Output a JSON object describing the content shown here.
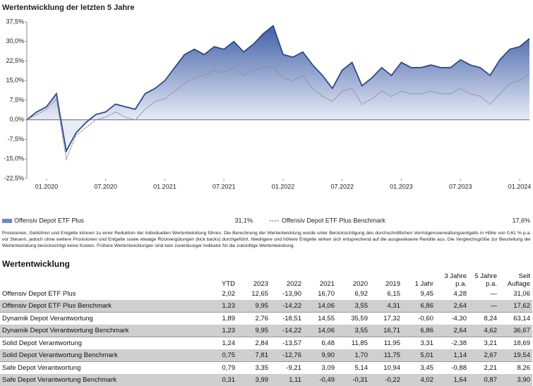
{
  "chart_data": {
    "type": "line",
    "title": "Wertentwicklung der letzten 5 Jahre",
    "x": [
      "2019-11",
      "2019-12",
      "2020-01",
      "2020-02",
      "2020-03",
      "2020-04",
      "2020-05",
      "2020-06",
      "2020-07",
      "2020-08",
      "2020-09",
      "2020-10",
      "2020-11",
      "2020-12",
      "2021-01",
      "2021-02",
      "2021-03",
      "2021-04",
      "2021-05",
      "2021-06",
      "2021-07",
      "2021-08",
      "2021-09",
      "2021-10",
      "2021-11",
      "2021-12",
      "2022-01",
      "2022-02",
      "2022-03",
      "2022-04",
      "2022-05",
      "2022-06",
      "2022-07",
      "2022-08",
      "2022-09",
      "2022-10",
      "2022-11",
      "2022-12",
      "2023-01",
      "2023-02",
      "2023-03",
      "2023-04",
      "2023-05",
      "2023-06",
      "2023-07",
      "2023-08",
      "2023-09",
      "2023-10",
      "2023-11",
      "2023-12",
      "2024-01",
      "2024-02"
    ],
    "series": [
      {
        "name": "Offensiv Depot ETF Plus",
        "color": "#2a4a8f",
        "legend_label": "31,1%",
        "values": [
          0,
          3,
          5,
          10,
          -12,
          -5,
          -1,
          2,
          3,
          6,
          5,
          4,
          10,
          12,
          15,
          20,
          25,
          27,
          25,
          28,
          27,
          30,
          26,
          29,
          33,
          36,
          25,
          24,
          26,
          21,
          17,
          12,
          19,
          22,
          13,
          16,
          20,
          17,
          22,
          20,
          20,
          21,
          20,
          20,
          23,
          21,
          20,
          17,
          23,
          27,
          28,
          31.1
        ]
      },
      {
        "name": "Offensiv Depot ETF Plus Benchmark",
        "color": "#8a8a8a",
        "legend_label": "17,6%",
        "values": [
          0,
          2,
          4,
          8,
          -15,
          -6,
          -3,
          0,
          1,
          3,
          1,
          0,
          4,
          7,
          8,
          11,
          14,
          16,
          17,
          19,
          18,
          20,
          17,
          19,
          20,
          20,
          16,
          15,
          17,
          12,
          9,
          7,
          11,
          12,
          6,
          8,
          11,
          9,
          11,
          10,
          10,
          11,
          10,
          10,
          12,
          10,
          9,
          6,
          10,
          14,
          15,
          17.6
        ]
      }
    ],
    "xlim": [
      "2019-11",
      "2024-02"
    ],
    "xticks": [
      {
        "value": "2020-01",
        "label": "01.2020"
      },
      {
        "value": "2020-07",
        "label": "07.2020"
      },
      {
        "value": "2021-01",
        "label": "01.2021"
      },
      {
        "value": "2021-07",
        "label": "07.2021"
      },
      {
        "value": "2022-01",
        "label": "01.2022"
      },
      {
        "value": "2022-07",
        "label": "07.2022"
      },
      {
        "value": "2023-01",
        "label": "01.2023"
      },
      {
        "value": "2023-07",
        "label": "07.2023"
      },
      {
        "value": "2024-01",
        "label": "01.2024"
      }
    ],
    "ylim": [
      -22.5,
      37.5
    ],
    "yticks": [
      {
        "value": 37.5,
        "label": "37,5%"
      },
      {
        "value": 30,
        "label": "30,0%"
      },
      {
        "value": 22.5,
        "label": "22,5%"
      },
      {
        "value": 15,
        "label": "15,0%"
      },
      {
        "value": 7.5,
        "label": "7,5%"
      },
      {
        "value": 0,
        "label": "0,0%"
      },
      {
        "value": -7.5,
        "label": "-7,5%"
      },
      {
        "value": -15,
        "label": "-15,0%"
      },
      {
        "value": -22.5,
        "label": "-22,5%"
      }
    ]
  },
  "disclaimer": "Provisionen, Gebühren und Entgelte können zu einer Reduktion der individuellen Wertentwicklung führen. Die Berechnung der Wertentwicklung wurde unter Berücksichtigung des durchschnittlichen Vermögensverwaltungsentgelts in Höhe von 0,61 % p.a. vor Steuern, jedoch ohne weitere Provisionen und Entgelte sowie etwaige Rückvergütungen (kick backs) durchgeführt. Niedrigere und höhere Entgelte wirken sich entsprechend auf die ausgewiesene Rendite aus. Die Vergleichsgröße zur Beurteilung der Wertentwicklung berücksichtigt keine Kosten. Frühere Wertentwicklungen sind kein zuverlässiger Indikator für die zukünftige Wertentwicklung.",
  "table": {
    "title": "Wertentwicklung",
    "columns": [
      "YTD",
      "2023",
      "2022",
      "2021",
      "2020",
      "2019",
      "1 Jahr",
      "3 Jahre p.a.",
      "5 Jahre p.a.",
      "Seit Auflage"
    ],
    "rows": [
      {
        "name": "Offensiv Depot ETF Plus",
        "values": [
          "2,02",
          "12,65",
          "-13,90",
          "16,70",
          "6,92",
          "6,15",
          "9,45",
          "4,28",
          "—",
          "31,06"
        ]
      },
      {
        "name": "Offensiv Depot ETF Plus Benchmark",
        "values": [
          "1,23",
          "9,95",
          "-14,22",
          "14,06",
          "3,55",
          "4,31",
          "6,86",
          "2,64",
          "—",
          "17,62"
        ]
      },
      {
        "name": "Dynamik Depot Verantwortung",
        "values": [
          "1,89",
          "2,76",
          "-18,51",
          "14,55",
          "35,59",
          "17,32",
          "-0,60",
          "-4,30",
          "8,24",
          "63,14"
        ]
      },
      {
        "name": "Dynamik Depot Verantwortung Benchmark",
        "values": [
          "1,23",
          "9,95",
          "-14,22",
          "14,06",
          "3,55",
          "16,71",
          "6,86",
          "2,64",
          "4,62",
          "36,67"
        ]
      },
      {
        "name": "Solid Depot Verantwortung",
        "values": [
          "1,24",
          "2,84",
          "-13,57",
          "6,48",
          "11,85",
          "11,95",
          "3,31",
          "-2,38",
          "3,21",
          "18,69"
        ]
      },
      {
        "name": "Solid Depot Verantwortung Benchmark",
        "values": [
          "0,75",
          "7,81",
          "-12,76",
          "9,90",
          "1,70",
          "11,75",
          "5,01",
          "1,14",
          "2,67",
          "19,54"
        ]
      },
      {
        "name": "Safe Depot Verantwortung",
        "values": [
          "0,79",
          "3,35",
          "-9,21",
          "3,09",
          "5,14",
          "10,94",
          "3,45",
          "-0,88",
          "2,21",
          "8,26"
        ]
      },
      {
        "name": "Safe Depot Verantwortung Benchmark",
        "values": [
          "0,31",
          "3,99",
          "1,11",
          "-0,49",
          "-0,31",
          "-0,22",
          "4,02",
          "1,64",
          "0,87",
          "3,90"
        ]
      }
    ]
  }
}
